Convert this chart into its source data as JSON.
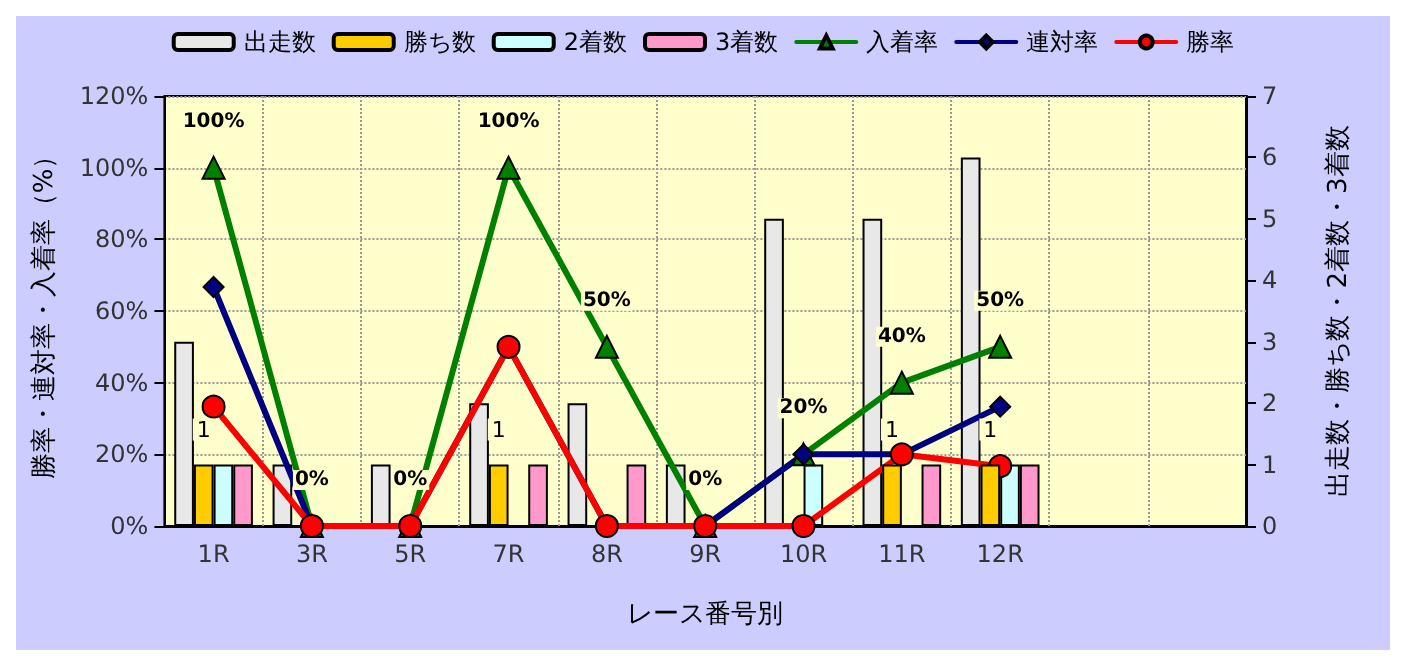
{
  "chart_data": {
    "type": "bar",
    "categories": [
      "1R",
      "3R",
      "5R",
      "7R",
      "8R",
      "9R",
      "10R",
      "11R",
      "12R",
      null,
      null
    ],
    "xlabel": "レース番号別",
    "ylabel": "勝率・連対率・入着率（%）",
    "y2label": "出走数・勝ち数・2着数・3着数",
    "series": [
      {
        "name": "出走数",
        "axis": "y2",
        "color": "#e8e8e8",
        "values": [
          3,
          1,
          1,
          2,
          2,
          1,
          5,
          5,
          6,
          null,
          null
        ]
      },
      {
        "name": "勝ち数",
        "axis": "y2",
        "color": "#ffcc00",
        "values": [
          1,
          0,
          0,
          1,
          0,
          0,
          0,
          1,
          1,
          null,
          null
        ],
        "value_labels": [
          "1",
          null,
          null,
          "1",
          null,
          null,
          null,
          "1",
          "1",
          null,
          null
        ]
      },
      {
        "name": "2着数",
        "axis": "y2",
        "color": "#ccffff",
        "values": [
          1,
          0,
          0,
          0,
          0,
          0,
          1,
          0,
          1,
          null,
          null
        ]
      },
      {
        "name": "3着数",
        "axis": "y2",
        "color": "#ff99cc",
        "values": [
          1,
          0,
          0,
          1,
          1,
          0,
          0,
          1,
          1,
          null,
          null
        ]
      },
      {
        "name": "入着率",
        "type": "line",
        "color": "#008000",
        "marker": "triangle",
        "values": [
          100,
          0,
          0,
          100,
          50,
          0,
          20,
          40,
          50,
          null,
          null
        ],
        "value_labels": [
          "100%",
          "0%",
          "0%",
          "100%",
          "50%",
          "0%",
          "20%",
          "40%",
          "50%",
          null,
          null
        ]
      },
      {
        "name": "連対率",
        "type": "line",
        "color": "#000080",
        "marker": "diamond",
        "values": [
          66.7,
          0,
          0,
          50,
          0,
          0,
          20,
          20,
          33.3,
          null,
          null
        ]
      },
      {
        "name": "勝率",
        "type": "line",
        "color": "#ff0000",
        "marker": "circle",
        "values": [
          33.3,
          0,
          0,
          50,
          0,
          0,
          0,
          20,
          16.7,
          null,
          null
        ]
      }
    ],
    "ylim": [
      0,
      120
    ],
    "yticks": [
      {
        "value": 0,
        "label": "0%"
      },
      {
        "value": 20,
        "label": "20%"
      },
      {
        "value": 40,
        "label": "40%"
      },
      {
        "value": 60,
        "label": "60%"
      },
      {
        "value": 80,
        "label": "80%"
      },
      {
        "value": 100,
        "label": "100%"
      },
      {
        "value": 120,
        "label": "120%"
      }
    ],
    "y2lim": [
      0,
      7
    ],
    "y2ticks": [
      0,
      1,
      2,
      3,
      4,
      5,
      6,
      7
    ],
    "grid": true,
    "legend": "top",
    "line_style": "solid"
  }
}
